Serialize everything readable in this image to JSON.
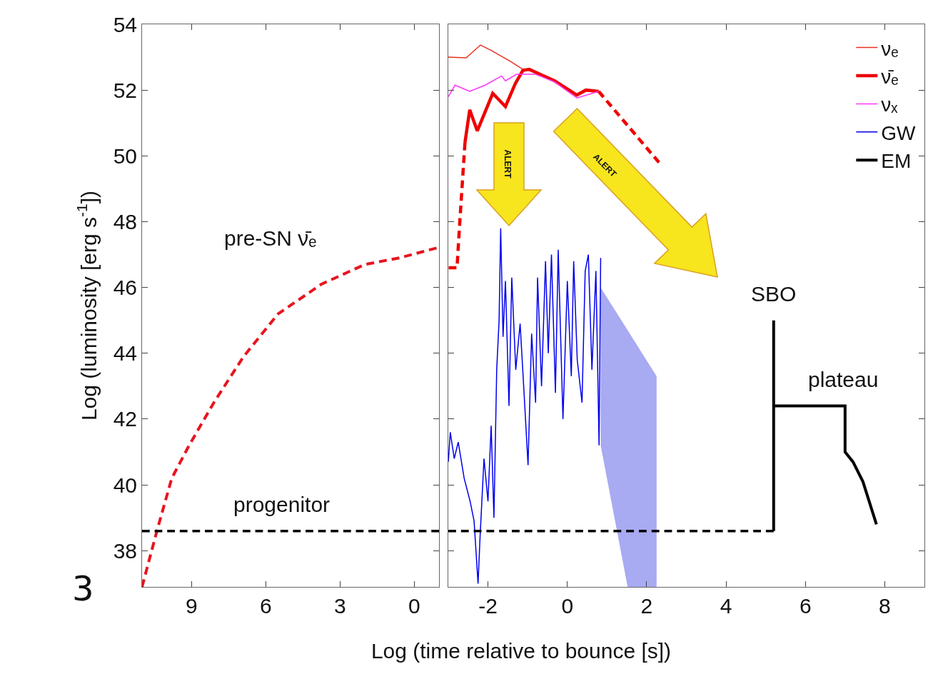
{
  "chart_data": [
    {
      "type": "line",
      "ylabel": "Log (luminosity [erg s$^{-1}$])",
      "xlim": [
        11,
        -1
      ],
      "xticks": [
        9,
        6,
        3,
        0
      ],
      "ylim": [
        36.9,
        54
      ],
      "yticks": [
        38,
        40,
        42,
        44,
        46,
        48,
        50,
        52,
        54
      ],
      "legend": false,
      "annotations": [
        "pre-SN ν̄ₑ",
        "progenitor",
        "3"
      ],
      "series": [
        {
          "color": "#e8141e",
          "line_style": "dashed",
          "x": [
            11,
            10.4,
            9.8,
            9.1,
            8.1,
            6.9,
            5.5,
            3.75,
            2.0,
            0.6,
            -0.9
          ],
          "values": [
            36.9,
            38.6,
            40.2,
            41.2,
            42.5,
            43.9,
            45.2,
            46.1,
            46.7,
            46.9,
            47.2
          ]
        },
        {
          "color": "#000000",
          "line_style": "dashed",
          "x": [
            11,
            -1
          ],
          "values": [
            38.6,
            38.6
          ]
        }
      ]
    },
    {
      "type": "line",
      "xlabel": "Log (time relative  to bounce [s])",
      "xlim": [
        -3,
        9
      ],
      "xticks": [
        -2,
        0,
        2,
        4,
        6,
        8
      ],
      "ylim": [
        36.9,
        54
      ],
      "yticks": [
        38,
        40,
        42,
        44,
        46,
        48,
        50,
        52,
        54
      ],
      "tick_labels": "x",
      "legend": "top right",
      "annotations": [
        "SBO",
        "plateau",
        "ALERT",
        "ALERT"
      ],
      "series": [
        {
          "name": "νₑ",
          "color": "#e8301e",
          "line_style": "solid",
          "x": [
            -3.0,
            -2.55,
            -2.19,
            -1.91,
            -1.43,
            -1.12,
            -0.8,
            -0.32,
            0.24,
            0.47,
            0.79
          ],
          "values": [
            53.0,
            52.98,
            53.37,
            53.2,
            52.87,
            52.63,
            52.55,
            52.28,
            51.85,
            52.0,
            51.95
          ]
        },
        {
          "name": "ν̄ₑ",
          "color": "#ee0000",
          "line_style": "solid",
          "x": [
            -2.58,
            -2.46,
            -2.27,
            -1.88,
            -1.56,
            -1.31,
            -1.12,
            -0.96,
            -0.32,
            0.24,
            0.47,
            0.79
          ],
          "values": [
            50.4,
            51.4,
            50.76,
            51.9,
            51.5,
            52.2,
            52.6,
            52.63,
            52.28,
            51.85,
            52.0,
            51.96
          ]
        },
        {
          "name": "νₓ",
          "color": "#ff33ff",
          "line_style": "solid",
          "x": [
            -3.0,
            -2.83,
            -2.46,
            -2.07,
            -1.66,
            -1.56,
            -1.28,
            -0.8,
            -0.32,
            0.24,
            0.79
          ],
          "values": [
            51.8,
            52.15,
            51.96,
            52.15,
            52.43,
            52.28,
            52.48,
            52.48,
            52.25,
            51.76,
            51.96
          ]
        },
        {
          "name": "GW",
          "color": "#0000ee",
          "line_style": "solid",
          "x": [
            -3.0,
            -2.95,
            -2.85,
            -2.75,
            -2.6,
            -2.45,
            -2.35,
            -2.25,
            -2.2,
            -2.1,
            -2.0,
            -1.92,
            -1.85,
            -1.78,
            -1.72,
            -1.68,
            -1.62,
            -1.56,
            -1.47,
            -1.4,
            -1.3,
            -1.19,
            -1.1,
            -0.99,
            -0.9,
            -0.8,
            -0.75,
            -0.65,
            -0.55,
            -0.48,
            -0.4,
            -0.3,
            -0.23,
            -0.11,
            0.0,
            0.1,
            0.16,
            0.25,
            0.37,
            0.45,
            0.53,
            0.62,
            0.72,
            0.8,
            0.84
          ],
          "values": [
            40.7,
            41.6,
            40.8,
            41.3,
            40.2,
            39.5,
            38.9,
            37.0,
            38.4,
            40.8,
            39.5,
            41.8,
            39.0,
            43.5,
            45.0,
            47.8,
            44.5,
            46.2,
            42.4,
            46.3,
            43.5,
            44.9,
            43.0,
            40.6,
            44.6,
            42.5,
            46.3,
            43.0,
            46.8,
            44.0,
            47.0,
            42.8,
            47.15,
            42.0,
            46.2,
            43.3,
            46.8,
            43.8,
            42.5,
            46.5,
            47.0,
            43.5,
            46.5,
            41.2,
            46.9
          ]
        },
        {
          "name": "EM",
          "color": "#000000",
          "line_style": "solid",
          "x": [
            5.2,
            5.2,
            5.2,
            7.0,
            7.0,
            7.2,
            7.45,
            7.79
          ],
          "values": [
            38.6,
            45.0,
            42.4,
            42.4,
            41.0,
            40.7,
            40.1,
            38.8
          ]
        },
        {
          "color": "#ee0000",
          "line_style": "dashed",
          "x": [
            -2.99,
            -2.78,
            -2.71,
            -2.58
          ],
          "values": [
            46.6,
            46.6,
            48.0,
            50.4
          ]
        },
        {
          "color": "#ee0000",
          "line_style": "dashed",
          "x": [
            0.79,
            2.31
          ],
          "values": [
            51.96,
            49.8
          ]
        },
        {
          "color": "#000000",
          "line_style": "dashed",
          "x": [
            -3,
            5.2
          ],
          "values": [
            38.6,
            38.6
          ]
        },
        {
          "type": "area",
          "color": "#a8aaf2",
          "x": [
            0.84,
            1.52,
            2.25,
            2.25
          ],
          "values": [
            null,
            null,
            null,
            null
          ],
          "lower": [
            41.2,
            36.9,
            36.9,
            36.9
          ],
          "upper": [
            46.0,
            44.7,
            43.3,
            43.3
          ]
        }
      ]
    }
  ]
}
